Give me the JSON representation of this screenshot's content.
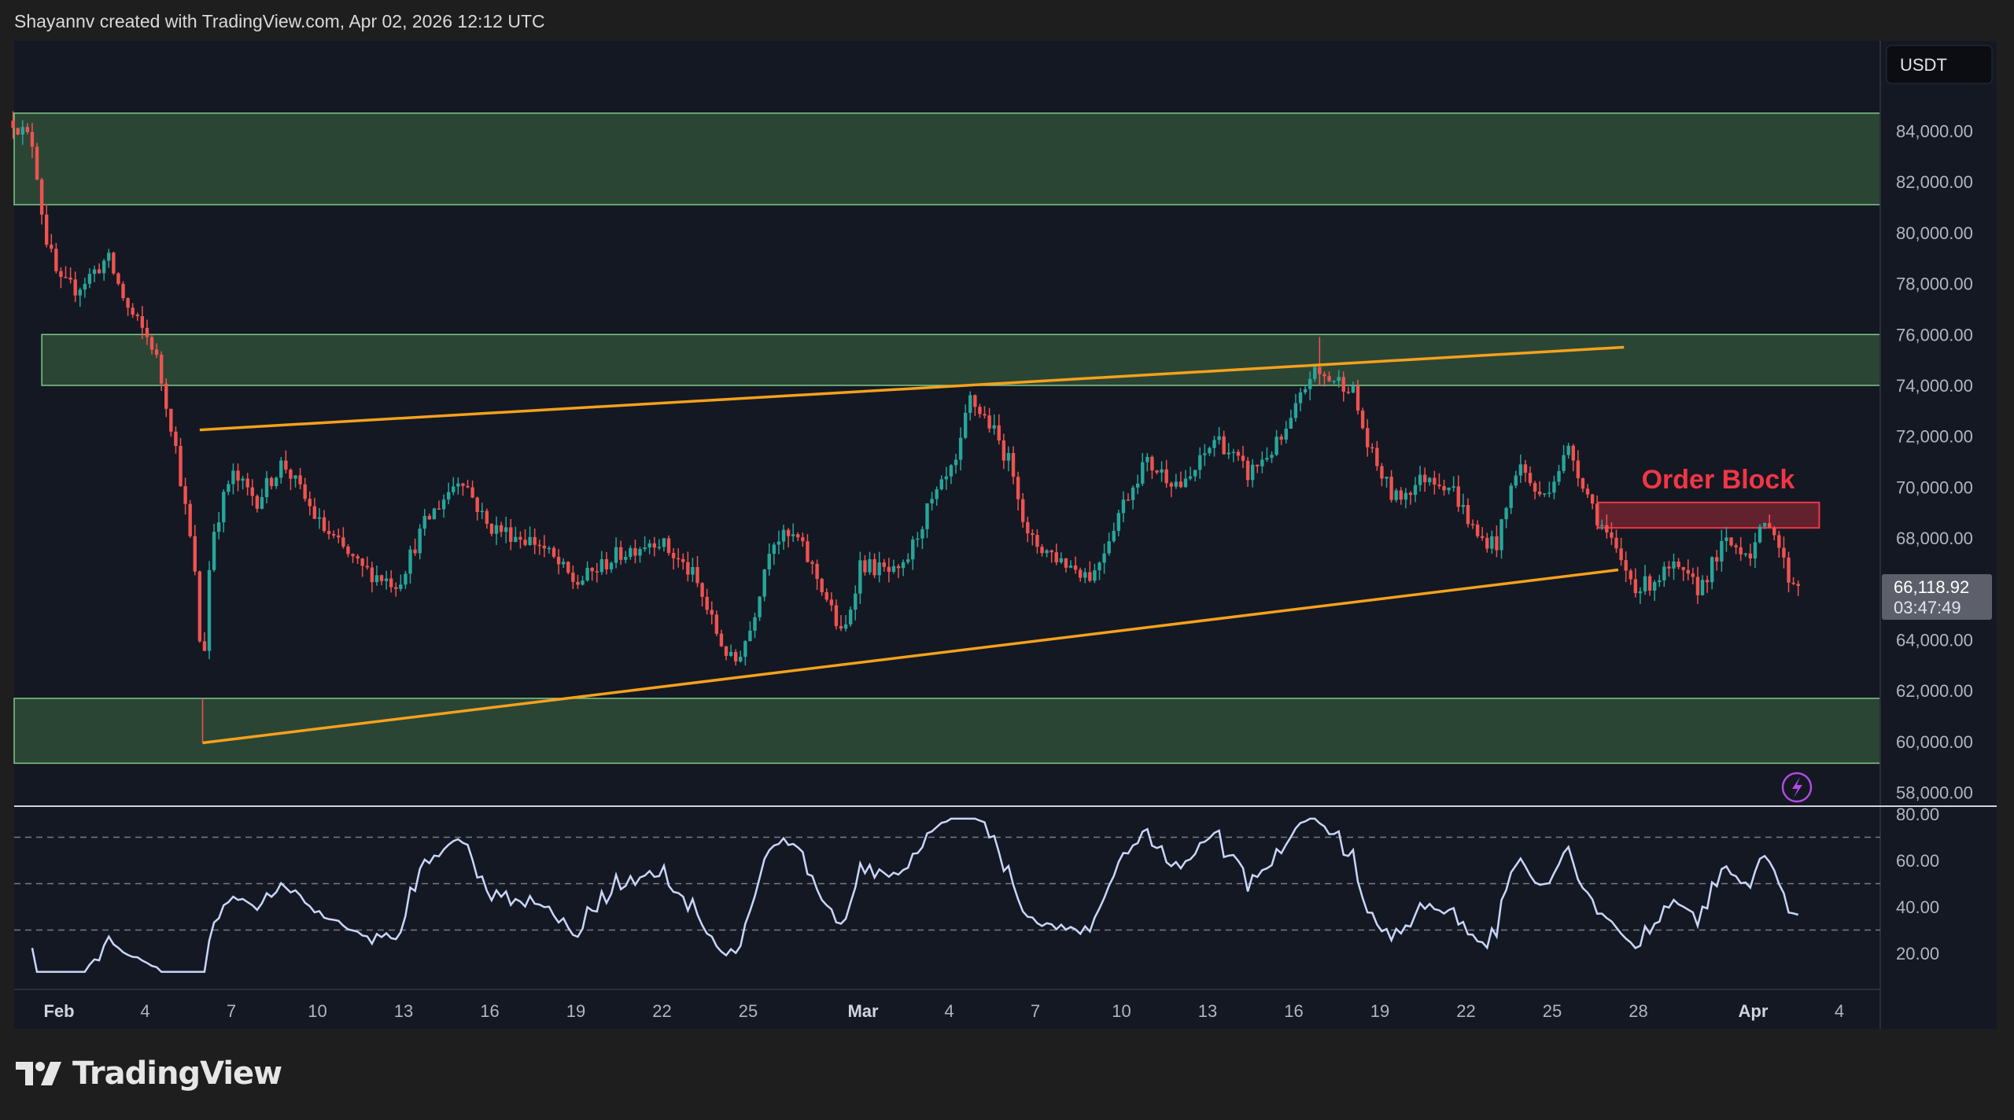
{
  "header": {
    "credit": "Shayannv created with TradingView.com, Apr 02, 2026 12:12 UTC"
  },
  "brand": {
    "logo_text": "TradingView"
  },
  "colors": {
    "up": "#26a69a",
    "down": "#ef5350",
    "zone": "#2b4535",
    "zone_border": "#7fc98a",
    "trendline": "#f7a21b",
    "order_block": "#f23645",
    "rsi": "#c9d6f7",
    "background": "#141823"
  },
  "chart_data": {
    "type": "candlestick",
    "title": "",
    "currency": "USDT",
    "last_price": "66,118.92",
    "countdown": "03:47:49",
    "price_ticks": [
      "84,000.00",
      "82,000.00",
      "80,000.00",
      "78,000.00",
      "76,000.00",
      "74,000.00",
      "72,000.00",
      "70,000.00",
      "68,000.00",
      "64,000.00",
      "62,000.00",
      "60,000.00",
      "58,000.00"
    ],
    "price_tick_values": [
      84000,
      82000,
      80000,
      78000,
      76000,
      74000,
      72000,
      70000,
      68000,
      64000,
      62000,
      60000,
      58000
    ],
    "x_ticks": [
      {
        "label": "Feb",
        "day": 0
      },
      {
        "label": "4",
        "day": 3
      },
      {
        "label": "7",
        "day": 6
      },
      {
        "label": "10",
        "day": 9
      },
      {
        "label": "13",
        "day": 12
      },
      {
        "label": "16",
        "day": 15
      },
      {
        "label": "19",
        "day": 18
      },
      {
        "label": "22",
        "day": 21
      },
      {
        "label": "25",
        "day": 24
      },
      {
        "label": "Mar",
        "day": 28
      },
      {
        "label": "4",
        "day": 31
      },
      {
        "label": "7",
        "day": 34
      },
      {
        "label": "10",
        "day": 37
      },
      {
        "label": "13",
        "day": 40
      },
      {
        "label": "16",
        "day": 43
      },
      {
        "label": "19",
        "day": 46
      },
      {
        "label": "22",
        "day": 49
      },
      {
        "label": "25",
        "day": 52
      },
      {
        "label": "28",
        "day": 55
      },
      {
        "label": "Apr",
        "day": 59
      },
      {
        "label": "4",
        "day": 62
      }
    ],
    "x_unit": "days since Feb 1",
    "approx_close_path": [
      [
        -1.6,
        84400
      ],
      [
        -0.9,
        83500
      ],
      [
        -0.5,
        80000
      ],
      [
        0,
        78000
      ],
      [
        0.6,
        77800
      ],
      [
        1.7,
        79000
      ],
      [
        2.4,
        77000
      ],
      [
        3.3,
        75500
      ],
      [
        4,
        72000
      ],
      [
        4.7,
        67000
      ],
      [
        5,
        62500
      ],
      [
        5.3,
        68000
      ],
      [
        6,
        70500
      ],
      [
        6.9,
        69500
      ],
      [
        7.8,
        71000
      ],
      [
        9.1,
        68500
      ],
      [
        10.5,
        66800
      ],
      [
        11.8,
        66200
      ],
      [
        12.7,
        68500
      ],
      [
        14,
        70500
      ],
      [
        14.9,
        68500
      ],
      [
        16.7,
        67800
      ],
      [
        18,
        66200
      ],
      [
        19.4,
        67300
      ],
      [
        20.8,
        68000
      ],
      [
        22.1,
        66500
      ],
      [
        23,
        64000
      ],
      [
        23.5,
        63000
      ],
      [
        24.1,
        64500
      ],
      [
        24.8,
        68000
      ],
      [
        25.7,
        68000
      ],
      [
        26.6,
        66000
      ],
      [
        27.3,
        64000
      ],
      [
        27.9,
        67000
      ],
      [
        29.3,
        66500
      ],
      [
        30.2,
        69000
      ],
      [
        31.3,
        71000
      ],
      [
        31.7,
        73500
      ],
      [
        32.4,
        72500
      ],
      [
        33.3,
        70500
      ],
      [
        33.7,
        68000
      ],
      [
        35.1,
        67000
      ],
      [
        36,
        66500
      ],
      [
        36.9,
        69000
      ],
      [
        37.8,
        71000
      ],
      [
        39.2,
        70000
      ],
      [
        40.3,
        72000
      ],
      [
        41.4,
        70500
      ],
      [
        42.7,
        72000
      ],
      [
        43.6,
        74500
      ],
      [
        45,
        74000
      ],
      [
        45.6,
        71500
      ],
      [
        46.5,
        69500
      ],
      [
        47.7,
        70500
      ],
      [
        48.5,
        70000
      ],
      [
        49.4,
        68000
      ],
      [
        50.1,
        67800
      ],
      [
        50.8,
        71000
      ],
      [
        51.6,
        69500
      ],
      [
        52.6,
        71500
      ],
      [
        53.5,
        69000
      ],
      [
        54.4,
        67000
      ],
      [
        55,
        66000
      ],
      [
        56.2,
        66800
      ],
      [
        57.1,
        66000
      ],
      [
        58,
        67800
      ],
      [
        58.9,
        67500
      ],
      [
        59.6,
        68800
      ],
      [
        60.2,
        66500
      ],
      [
        60.6,
        66119
      ]
    ],
    "zones": [
      {
        "from_day": -2,
        "to_day": 64,
        "high": 84700,
        "low": 81100
      },
      {
        "from_day": -0.6,
        "to_day": 64,
        "high": 76000,
        "low": 74000
      },
      {
        "from_day": -2,
        "to_day": 64,
        "high": 61700,
        "low": 59150
      }
    ],
    "order_block": {
      "label": "Order Block",
      "from_day": 53.6,
      "to_day": 61.3,
      "high": 69400,
      "low": 68400
    },
    "trendlines": [
      {
        "from": [
          4.9,
          72250
        ],
        "to": [
          54.5,
          75500
        ]
      },
      {
        "from": [
          5.0,
          59950
        ],
        "to": [
          54.3,
          66750
        ]
      }
    ],
    "rsi": {
      "ticks": [
        "80.00",
        "60.00",
        "40.00",
        "20.00"
      ],
      "tick_values": [
        80,
        60,
        40,
        20
      ],
      "levels": [
        70,
        50,
        30
      ],
      "period": 14
    }
  }
}
